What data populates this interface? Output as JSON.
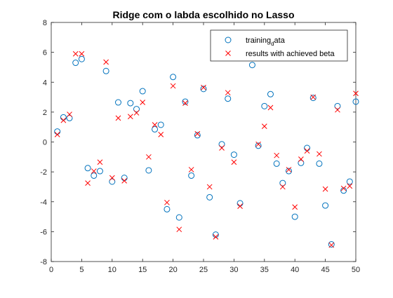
{
  "chart_data": {
    "type": "scatter",
    "title": "Ridge com o labda escolhido no Lasso",
    "xlabel": "",
    "ylabel": "",
    "xlim": [
      0,
      50
    ],
    "ylim": [
      -8,
      8
    ],
    "x_ticks": [
      0,
      5,
      10,
      15,
      20,
      25,
      30,
      35,
      40,
      45,
      50
    ],
    "y_ticks": [
      -8,
      -6,
      -4,
      -2,
      0,
      2,
      4,
      6,
      8
    ],
    "grid": false,
    "legend_position": "top-right",
    "series": [
      {
        "name": "training_data",
        "legend_label_main": "training",
        "legend_label_sub": "d",
        "legend_label_tail": "ata",
        "marker": "circle",
        "color": "#0072BD",
        "points": [
          [
            1,
            0.7
          ],
          [
            2,
            1.65
          ],
          [
            3,
            1.6
          ],
          [
            4,
            5.3
          ],
          [
            5,
            5.55
          ],
          [
            6,
            -1.75
          ],
          [
            7,
            -2.25
          ],
          [
            8,
            -1.95
          ],
          [
            9,
            4.75
          ],
          [
            10,
            -2.65
          ],
          [
            11,
            2.65
          ],
          [
            12,
            -2.4
          ],
          [
            13,
            2.6
          ],
          [
            14,
            2.2
          ],
          [
            15,
            3.4
          ],
          [
            16,
            -1.9
          ],
          [
            17,
            0.85
          ],
          [
            18,
            1.15
          ],
          [
            19,
            -4.5
          ],
          [
            20,
            4.35
          ],
          [
            21,
            -5.05
          ],
          [
            22,
            2.7
          ],
          [
            23,
            -2.25
          ],
          [
            24,
            0.45
          ],
          [
            25,
            3.55
          ],
          [
            26,
            -3.7
          ],
          [
            27,
            -6.2
          ],
          [
            28,
            -0.15
          ],
          [
            29,
            2.9
          ],
          [
            30,
            -0.85
          ],
          [
            31,
            -4.1
          ],
          [
            33,
            5.15
          ],
          [
            34,
            -0.25
          ],
          [
            35,
            2.4
          ],
          [
            36,
            3.2
          ],
          [
            37,
            -1.45
          ],
          [
            38,
            -2.75
          ],
          [
            39,
            -1.95
          ],
          [
            40,
            -5.0
          ],
          [
            41,
            -1.4
          ],
          [
            42,
            -0.4
          ],
          [
            43,
            2.95
          ],
          [
            44,
            -1.45
          ],
          [
            45,
            -4.25
          ],
          [
            46,
            -6.85
          ],
          [
            47,
            2.4
          ],
          [
            48,
            -3.25
          ],
          [
            49,
            -2.65
          ],
          [
            50,
            2.7
          ]
        ]
      },
      {
        "name": "results with achieved beta",
        "marker": "x",
        "color": "#FF0000",
        "points": [
          [
            1,
            0.5
          ],
          [
            2,
            1.45
          ],
          [
            3,
            1.85
          ],
          [
            4,
            5.9
          ],
          [
            5,
            5.9
          ],
          [
            6,
            -2.75
          ],
          [
            7,
            -1.95
          ],
          [
            8,
            -1.35
          ],
          [
            9,
            5.35
          ],
          [
            10,
            -2.4
          ],
          [
            11,
            1.6
          ],
          [
            12,
            -2.6
          ],
          [
            13,
            1.7
          ],
          [
            14,
            1.95
          ],
          [
            15,
            2.65
          ],
          [
            16,
            -1.0
          ],
          [
            17,
            1.15
          ],
          [
            18,
            0.5
          ],
          [
            19,
            -4.05
          ],
          [
            20,
            3.75
          ],
          [
            21,
            -5.85
          ],
          [
            22,
            2.6
          ],
          [
            23,
            -1.85
          ],
          [
            24,
            0.55
          ],
          [
            25,
            3.65
          ],
          [
            26,
            -3.0
          ],
          [
            27,
            -6.35
          ],
          [
            28,
            -0.4
          ],
          [
            29,
            3.3
          ],
          [
            30,
            -1.35
          ],
          [
            31,
            -4.3
          ],
          [
            34,
            -0.15
          ],
          [
            35,
            1.05
          ],
          [
            36,
            2.3
          ],
          [
            37,
            -0.9
          ],
          [
            38,
            -3.0
          ],
          [
            39,
            -1.85
          ],
          [
            40,
            -4.35
          ],
          [
            41,
            -1.15
          ],
          [
            42,
            -0.6
          ],
          [
            43,
            3.0
          ],
          [
            44,
            -0.8
          ],
          [
            45,
            -3.15
          ],
          [
            46,
            -6.9
          ],
          [
            47,
            2.15
          ],
          [
            48,
            -3.1
          ],
          [
            49,
            -2.95
          ],
          [
            50,
            3.25
          ]
        ]
      }
    ]
  }
}
